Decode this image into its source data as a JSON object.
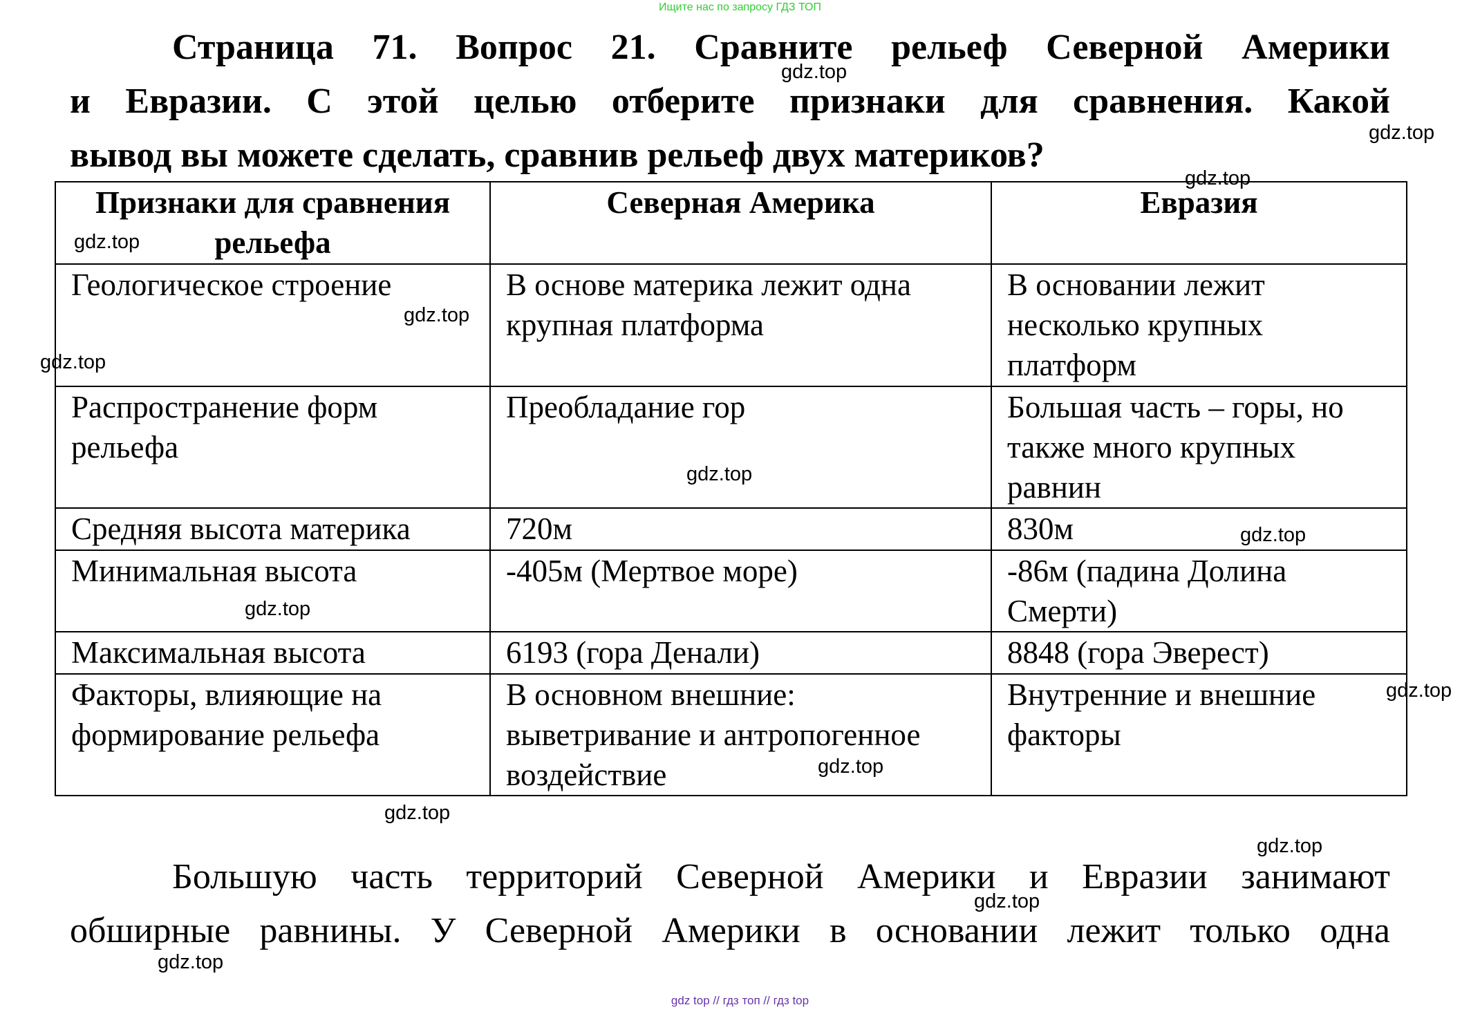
{
  "top_note": "Ищите нас по запросу ГДЗ ТОП",
  "title_lines": [
    "Страница 71. Вопрос 21.      Сравните рельеф Северной Америки",
    "и Евразии. С этой целью отберите признаки для сравнения. Какой",
    "вывод вы можете сделать, сравнив рельеф двух материков?"
  ],
  "table": {
    "headers": [
      "Признаки для сравнения рельефа",
      "Северная Америка",
      "Евразия"
    ],
    "rows": [
      [
        "Геологическое строение",
        "В основе материка лежит одна крупная платформа",
        "В основании лежит несколько крупных платформ"
      ],
      [
        "Распространение форм рельефа",
        "Преобладание гор",
        "Большая часть – горы, но также много крупных равнин"
      ],
      [
        "Средняя высота материка",
        "720м",
        "830м"
      ],
      [
        "Минимальная высота",
        "-405м (Мертвое море)",
        "-86м (падина Долина Смерти)"
      ],
      [
        "Максимальная высота",
        "6193 (гора Денали)",
        "8848 (гора Эверест)"
      ],
      [
        "Факторы, влияющие на формирование рельефа",
        "В основном внешние: выветривание и антропогенное воздействие",
        "Внутренние и внешние факторы"
      ]
    ]
  },
  "paragraph_lines": [
    "Большую часть территорий Северной Америки и Евразии занимают",
    "обширные равнины. У Северной Америки в основании лежит только одна"
  ],
  "watermark": "gdz.top",
  "footer": "gdz top  //  гдз топ  //  гдз top"
}
